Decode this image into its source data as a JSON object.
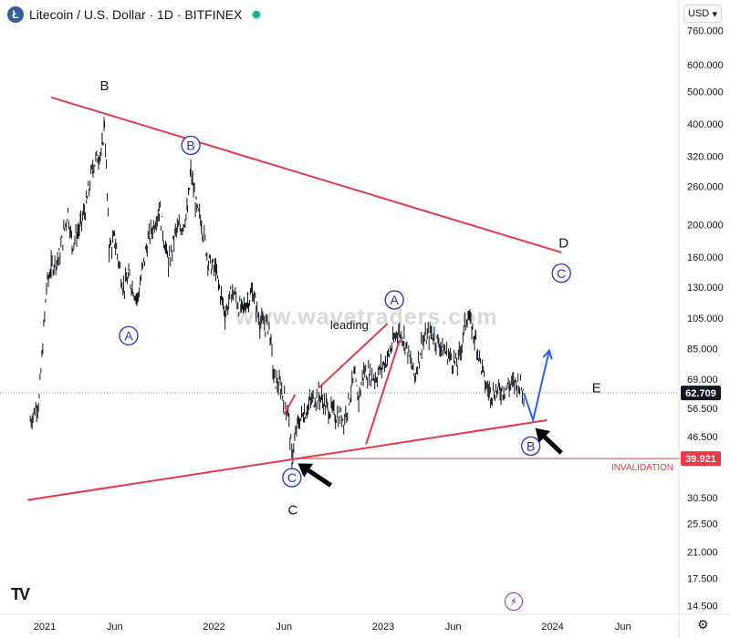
{
  "header": {
    "title": "Litecoin / U.S. Dollar · 1D · BITFINEX",
    "coin_letter": "Ł",
    "currency": "USD",
    "currency_arrow": "▾"
  },
  "watermark": "www.wavetraders.com",
  "colors": {
    "trendline": "#e6394a",
    "wave_circle": "#2431c9",
    "price_line": "#131722",
    "projection": "#2962ff",
    "price_tag": "#131722",
    "invalidation": "#f23645"
  },
  "chart_data": {
    "type": "line",
    "scale": "log",
    "x_ticks": [
      "2021",
      "Jun",
      "2022",
      "Jun",
      "2023",
      "Jun",
      "2024",
      "Jun"
    ],
    "y_ticks": [
      "760.000",
      "600.000",
      "500.000",
      "400.000",
      "320.000",
      "260.000",
      "200.000",
      "160.000",
      "130.000",
      "105.000",
      "85.000",
      "69.000",
      "56.500",
      "46.500",
      "30.500",
      "25.500",
      "21.000",
      "17.500",
      "14.500"
    ],
    "current_price": {
      "label": "62.709",
      "value": 62.709
    },
    "invalidation_level": {
      "label": "39.921",
      "value": 39.921,
      "text": "INVALIDATION"
    },
    "series": [
      {
        "points": [
          [
            "2020-12-01",
            52
          ],
          [
            "2020-12-20",
            60
          ],
          [
            "2021-01-05",
            130
          ],
          [
            "2021-01-15",
            150
          ],
          [
            "2021-02-01",
            160
          ],
          [
            "2021-02-20",
            220
          ],
          [
            "2021-03-01",
            175
          ],
          [
            "2021-03-20",
            200
          ],
          [
            "2021-04-01",
            230
          ],
          [
            "2021-04-15",
            300
          ],
          [
            "2021-05-05",
            340
          ],
          [
            "2021-05-10",
            410
          ],
          [
            "2021-05-20",
            170
          ],
          [
            "2021-06-01",
            180
          ],
          [
            "2021-06-20",
            130
          ],
          [
            "2021-07-01",
            140
          ],
          [
            "2021-07-20",
            120
          ],
          [
            "2021-08-10",
            175
          ],
          [
            "2021-09-05",
            225
          ],
          [
            "2021-09-25",
            150
          ],
          [
            "2021-10-10",
            190
          ],
          [
            "2021-10-25",
            200
          ],
          [
            "2021-11-05",
            220
          ],
          [
            "2021-11-12",
            290
          ],
          [
            "2021-11-25",
            220
          ],
          [
            "2021-12-05",
            205
          ],
          [
            "2021-12-20",
            155
          ],
          [
            "2022-01-05",
            145
          ],
          [
            "2022-01-25",
            108
          ],
          [
            "2022-02-10",
            128
          ],
          [
            "2022-03-01",
            110
          ],
          [
            "2022-03-25",
            126
          ],
          [
            "2022-04-10",
            102
          ],
          [
            "2022-04-30",
            100
          ],
          [
            "2022-05-10",
            70
          ],
          [
            "2022-05-25",
            65
          ],
          [
            "2022-06-10",
            55
          ],
          [
            "2022-06-18",
            40
          ],
          [
            "2022-07-01",
            51
          ],
          [
            "2022-07-15",
            55
          ],
          [
            "2022-08-01",
            60
          ],
          [
            "2022-08-15",
            62
          ],
          [
            "2022-09-01",
            57
          ],
          [
            "2022-09-20",
            54
          ],
          [
            "2022-10-10",
            53
          ],
          [
            "2022-10-30",
            70
          ],
          [
            "2022-11-09",
            60
          ],
          [
            "2022-11-20",
            73
          ],
          [
            "2022-12-15",
            70
          ],
          [
            "2023-01-10",
            80
          ],
          [
            "2023-02-01",
            96
          ],
          [
            "2023-02-15",
            92
          ],
          [
            "2023-03-10",
            70
          ],
          [
            "2023-03-25",
            89
          ],
          [
            "2023-04-15",
            95
          ],
          [
            "2023-05-10",
            85
          ],
          [
            "2023-06-10",
            76
          ],
          [
            "2023-07-01",
            108
          ],
          [
            "2023-07-20",
            90
          ],
          [
            "2023-08-10",
            66
          ],
          [
            "2023-08-20",
            63
          ],
          [
            "2023-09-10",
            64
          ],
          [
            "2023-10-01",
            66
          ],
          [
            "2023-10-20",
            68
          ],
          [
            "2023-10-31",
            62.709
          ]
        ]
      }
    ],
    "projection": {
      "points": [
        [
          "2023-10-31",
          62.709
        ],
        [
          "2023-11-20",
          52
        ],
        [
          "2023-12-25",
          84
        ]
      ]
    },
    "trendlines": [
      {
        "from": [
          "2021-01-15",
          480
        ],
        "to": [
          "2024-01-20",
          165
        ]
      },
      {
        "from": [
          "2020-11-25",
          30
        ],
        "to": [
          "2023-12-20",
          52
        ]
      },
      {
        "from": [
          "2022-06-01",
          54
        ],
        "to": [
          "2022-06-25",
          62
        ]
      },
      {
        "from": [
          "2022-08-15",
          65
        ],
        "to": [
          "2023-01-10",
          101
        ]
      },
      {
        "from": [
          "2022-11-25",
          44
        ],
        "to": [
          "2023-02-05",
          90
        ]
      }
    ],
    "wave_labels": [
      {
        "text": "B",
        "style": "plain",
        "at": [
          "2021-05-10",
          520
        ]
      },
      {
        "text": "B",
        "style": "circle",
        "at": [
          "2021-11-12",
          345
        ]
      },
      {
        "text": "A",
        "style": "circle",
        "at": [
          "2021-07-01",
          93
        ]
      },
      {
        "text": "D",
        "style": "plain",
        "at": [
          "2024-01-25",
          176
        ]
      },
      {
        "text": "C",
        "style": "circle",
        "at": [
          "2024-01-20",
          143
        ]
      },
      {
        "text": "A",
        "style": "circle",
        "at": [
          "2023-01-25",
          119
        ]
      },
      {
        "text": "leading",
        "style": "text",
        "at": [
          "2022-10-20",
          100
        ]
      },
      {
        "text": "E",
        "style": "plain",
        "at": [
          "2024-04-05",
          65
        ]
      },
      {
        "text": "B",
        "style": "circle",
        "at": [
          "2023-11-15",
          43.5
        ]
      },
      {
        "text": "C",
        "style": "circle",
        "at": [
          "2022-06-18",
          35
        ]
      },
      {
        "text": "C",
        "style": "plain",
        "at": [
          "2022-06-20",
          28
        ]
      }
    ],
    "arrows": [
      {
        "tip": [
          "2022-07-01",
          38.6
        ],
        "tail": [
          "2022-09-10",
          33.2
        ]
      },
      {
        "tip": [
          "2023-11-25",
          49.2
        ],
        "tail": [
          "2024-01-20",
          41.5
        ]
      }
    ]
  }
}
